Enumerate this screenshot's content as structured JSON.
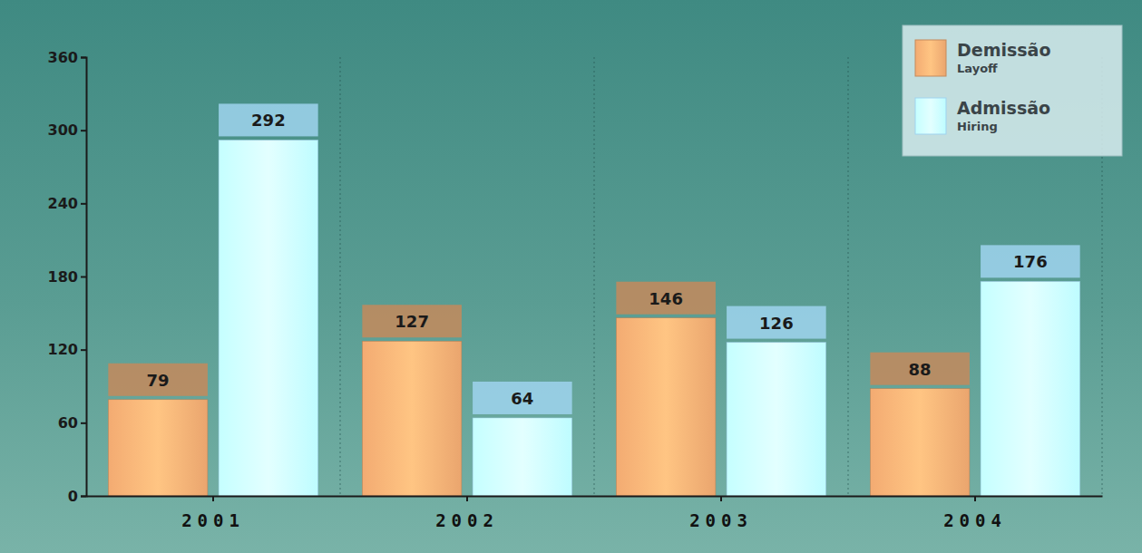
{
  "chart_data": {
    "type": "bar",
    "categories": [
      "2001",
      "2002",
      "2003",
      "2004"
    ],
    "series": [
      {
        "name": "Demissão\nLayoff",
        "color": "#c48a5c",
        "values": [
          79,
          127,
          146,
          88
        ]
      },
      {
        "name": "Admissão\nHiring",
        "color": "#9fd3ef",
        "values": [
          292,
          64,
          126,
          176
        ]
      }
    ],
    "ylim": [
      0,
      360
    ],
    "yticks": [
      0,
      60,
      120,
      180,
      240,
      300,
      360
    ],
    "grid": false,
    "legend": "top-right",
    "data_labels": true
  }
}
